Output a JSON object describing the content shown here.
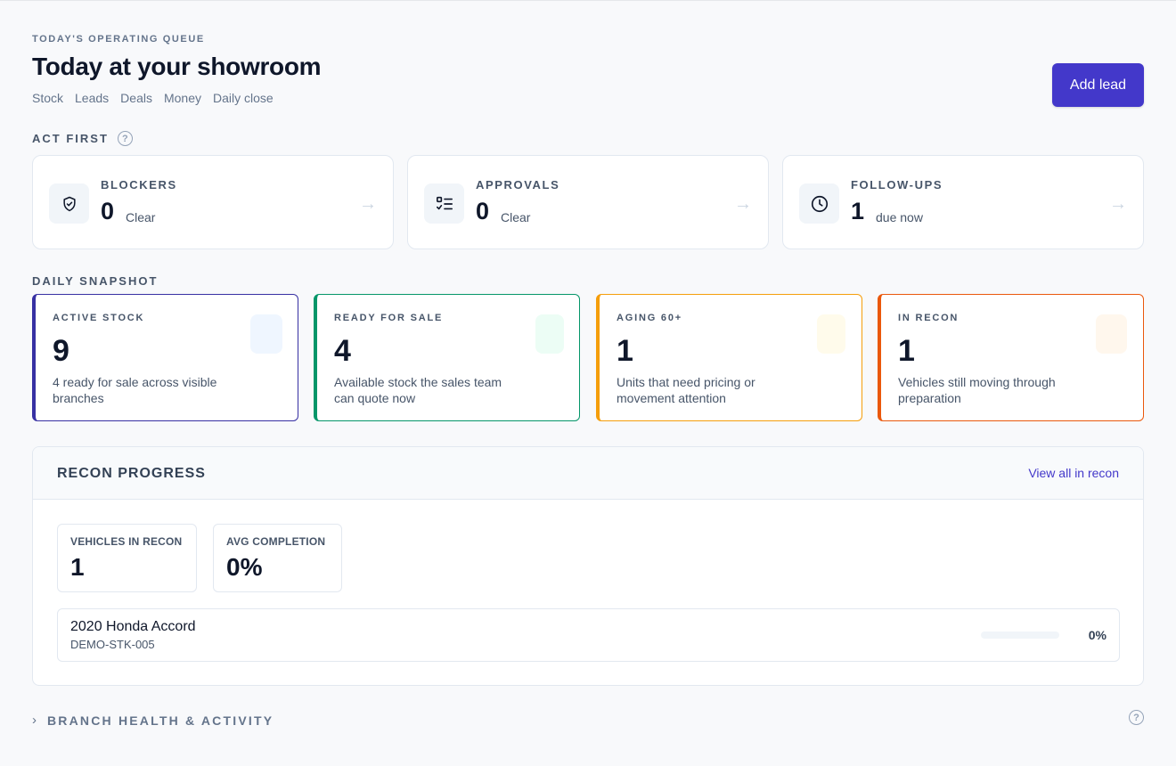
{
  "header": {
    "eyebrow": "TODAY'S OPERATING QUEUE",
    "title": "Today at your showroom",
    "nav": [
      "Stock",
      "Leads",
      "Deals",
      "Money",
      "Daily close"
    ],
    "add_lead_label": "Add lead"
  },
  "act_first": {
    "label": "ACT FIRST",
    "help_icon": "question-circle-icon",
    "cards": [
      {
        "title": "BLOCKERS",
        "count": "0",
        "status": "Clear",
        "icon": "shield-check-icon"
      },
      {
        "title": "APPROVALS",
        "count": "0",
        "status": "Clear",
        "icon": "checklist-icon"
      },
      {
        "title": "FOLLOW-UPS",
        "count": "1",
        "status": "due now",
        "icon": "clock-icon"
      }
    ],
    "arrow": "→"
  },
  "daily_snapshot": {
    "label": "DAILY SNAPSHOT",
    "cards": [
      {
        "title": "ACTIVE STOCK",
        "value": "9",
        "desc": "4 ready for sale across visible branches",
        "accent": "#3730a3",
        "chip": "#eff6ff"
      },
      {
        "title": "READY FOR SALE",
        "value": "4",
        "desc": "Available stock the sales team can quote now",
        "accent": "#059669",
        "chip": "#ecfdf5"
      },
      {
        "title": "AGING 60+",
        "value": "1",
        "desc": "Units that need pricing or movement attention",
        "accent": "#f59e0b",
        "chip": "#fffbeb"
      },
      {
        "title": "IN RECON",
        "value": "1",
        "desc": "Vehicles still moving through preparation",
        "accent": "#ea580c",
        "chip": "#fff7ed"
      }
    ]
  },
  "recon": {
    "title": "RECON PROGRESS",
    "view_all": "View all in recon",
    "metrics": [
      {
        "label": "VEHICLES IN RECON",
        "value": "1"
      },
      {
        "label": "AVG COMPLETION",
        "value": "0%"
      }
    ],
    "vehicles": [
      {
        "name": "2020 Honda Accord",
        "stock": "DEMO-STK-005",
        "progress": 0,
        "progress_label": "0%"
      }
    ]
  },
  "branch": {
    "label": "BRANCH HEALTH & ACTIVITY",
    "chevron": "›"
  }
}
